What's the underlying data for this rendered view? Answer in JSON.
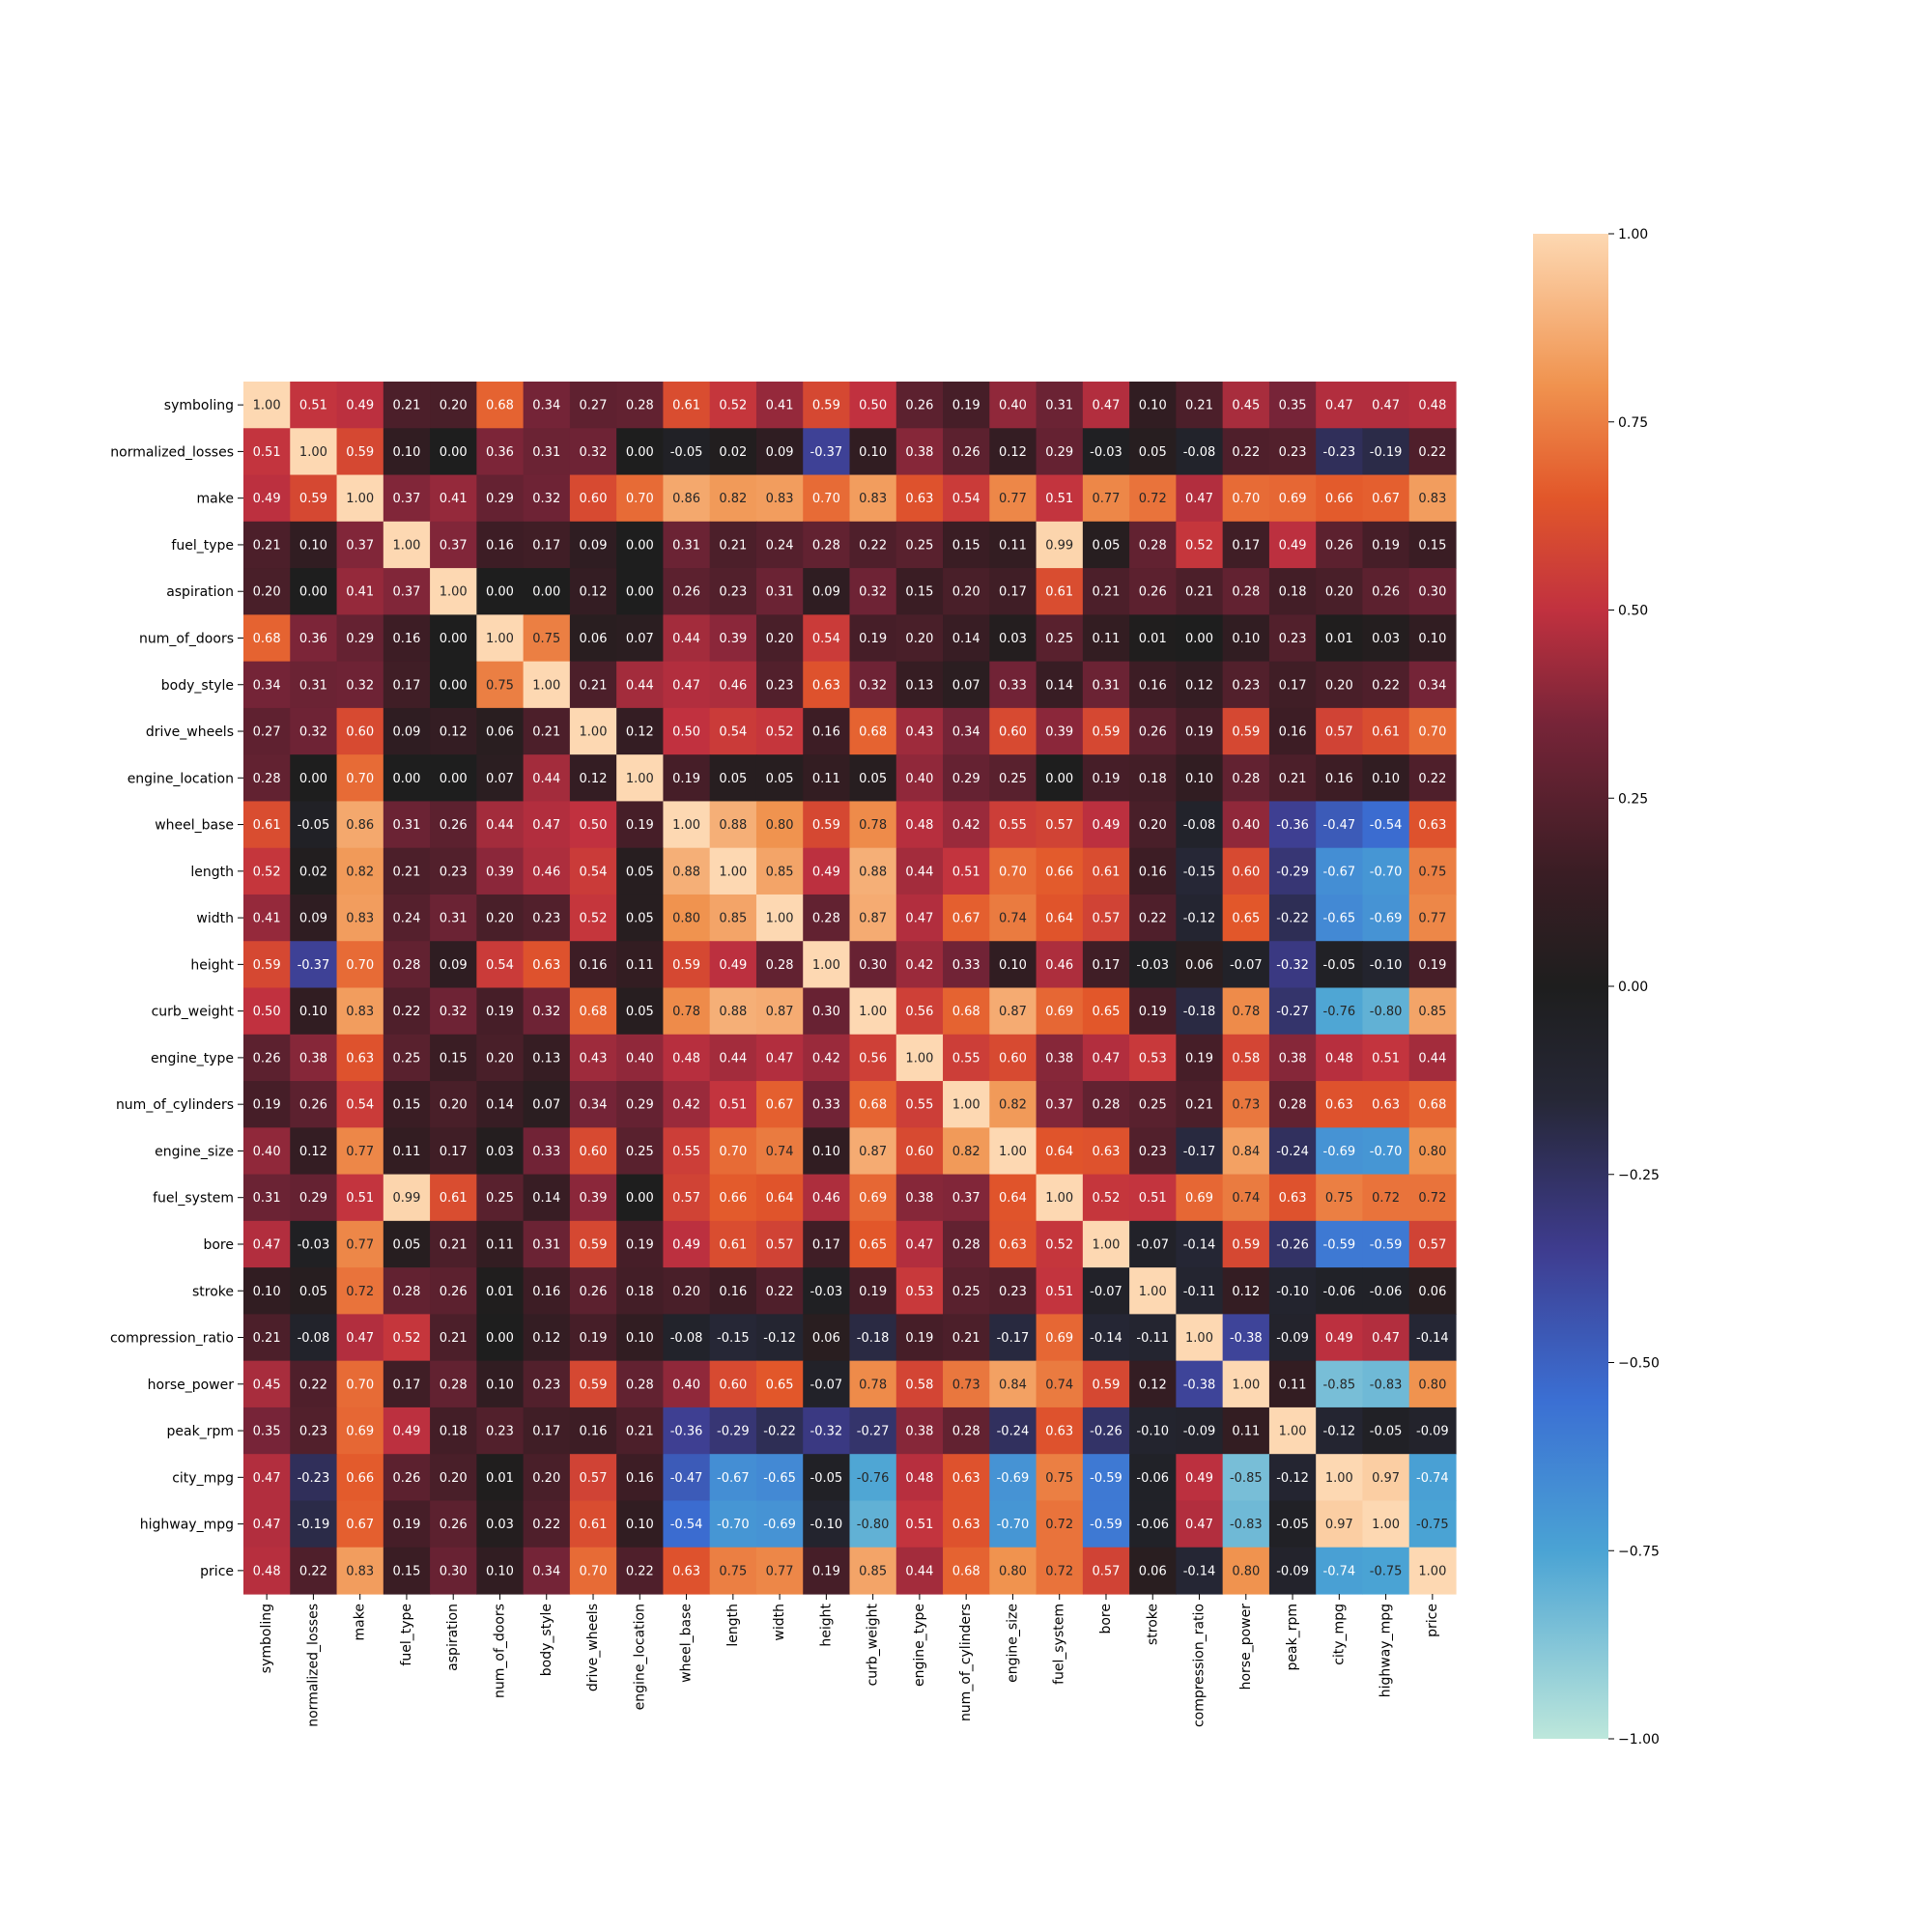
{
  "chart_data": {
    "type": "heatmap",
    "title": "",
    "xlabel": "",
    "ylabel": "",
    "variables": [
      "symboling",
      "normalized_losses",
      "make",
      "fuel_type",
      "aspiration",
      "num_of_doors",
      "body_style",
      "drive_wheels",
      "engine_location",
      "wheel_base",
      "length",
      "width",
      "height",
      "curb_weight",
      "engine_type",
      "num_of_cylinders",
      "engine_size",
      "fuel_system",
      "bore",
      "stroke",
      "compression_ratio",
      "horse_power",
      "peak_rpm",
      "city_mpg",
      "highway_mpg",
      "price"
    ],
    "values": [
      [
        1.0,
        0.51,
        0.49,
        0.21,
        0.2,
        0.68,
        0.34,
        0.27,
        0.28,
        0.61,
        0.52,
        0.41,
        0.59,
        0.5,
        0.26,
        0.19,
        0.4,
        0.31,
        0.47,
        0.1,
        0.21,
        0.45,
        0.35,
        0.47,
        0.47,
        0.48
      ],
      [
        0.51,
        1.0,
        0.59,
        0.1,
        0.0,
        0.36,
        0.31,
        0.32,
        0.0,
        -0.05,
        0.02,
        0.09,
        -0.37,
        0.1,
        0.38,
        0.26,
        0.12,
        0.29,
        -0.03,
        0.05,
        -0.08,
        0.22,
        0.23,
        -0.23,
        -0.19,
        0.22
      ],
      [
        0.49,
        0.59,
        1.0,
        0.37,
        0.41,
        0.29,
        0.32,
        0.6,
        0.7,
        0.86,
        0.82,
        0.83,
        0.7,
        0.83,
        0.63,
        0.54,
        0.77,
        0.51,
        0.77,
        0.72,
        0.47,
        0.7,
        0.69,
        0.66,
        0.67,
        0.83
      ],
      [
        0.21,
        0.1,
        0.37,
        1.0,
        0.37,
        0.16,
        0.17,
        0.09,
        0.0,
        0.31,
        0.21,
        0.24,
        0.28,
        0.22,
        0.25,
        0.15,
        0.11,
        0.99,
        0.05,
        0.28,
        0.52,
        0.17,
        0.49,
        0.26,
        0.19,
        0.15
      ],
      [
        0.2,
        0.0,
        0.41,
        0.37,
        1.0,
        0.0,
        0.0,
        0.12,
        0.0,
        0.26,
        0.23,
        0.31,
        0.09,
        0.32,
        0.15,
        0.2,
        0.17,
        0.61,
        0.21,
        0.26,
        0.21,
        0.28,
        0.18,
        0.2,
        0.26,
        0.3
      ],
      [
        0.68,
        0.36,
        0.29,
        0.16,
        0.0,
        1.0,
        0.75,
        0.06,
        0.07,
        0.44,
        0.39,
        0.2,
        0.54,
        0.19,
        0.2,
        0.14,
        0.03,
        0.25,
        0.11,
        0.01,
        0.0,
        0.1,
        0.23,
        0.01,
        0.03,
        0.1
      ],
      [
        0.34,
        0.31,
        0.32,
        0.17,
        0.0,
        0.75,
        1.0,
        0.21,
        0.44,
        0.47,
        0.46,
        0.23,
        0.63,
        0.32,
        0.13,
        0.07,
        0.33,
        0.14,
        0.31,
        0.16,
        0.12,
        0.23,
        0.17,
        0.2,
        0.22,
        0.34
      ],
      [
        0.27,
        0.32,
        0.6,
        0.09,
        0.12,
        0.06,
        0.21,
        1.0,
        0.12,
        0.5,
        0.54,
        0.52,
        0.16,
        0.68,
        0.43,
        0.34,
        0.6,
        0.39,
        0.59,
        0.26,
        0.19,
        0.59,
        0.16,
        0.57,
        0.61,
        0.7
      ],
      [
        0.28,
        0.0,
        0.7,
        0.0,
        0.0,
        0.07,
        0.44,
        0.12,
        1.0,
        0.19,
        0.05,
        0.05,
        0.11,
        0.05,
        0.4,
        0.29,
        0.25,
        0.0,
        0.19,
        0.18,
        0.1,
        0.28,
        0.21,
        0.16,
        0.1,
        0.22
      ],
      [
        0.61,
        -0.05,
        0.86,
        0.31,
        0.26,
        0.44,
        0.47,
        0.5,
        0.19,
        1.0,
        0.88,
        0.8,
        0.59,
        0.78,
        0.48,
        0.42,
        0.55,
        0.57,
        0.49,
        0.2,
        -0.08,
        0.4,
        -0.36,
        -0.47,
        -0.54,
        0.63
      ],
      [
        0.52,
        0.02,
        0.82,
        0.21,
        0.23,
        0.39,
        0.46,
        0.54,
        0.05,
        0.88,
        1.0,
        0.85,
        0.49,
        0.88,
        0.44,
        0.51,
        0.7,
        0.66,
        0.61,
        0.16,
        -0.15,
        0.6,
        -0.29,
        -0.67,
        -0.7,
        0.75
      ],
      [
        0.41,
        0.09,
        0.83,
        0.24,
        0.31,
        0.2,
        0.23,
        0.52,
        0.05,
        0.8,
        0.85,
        1.0,
        0.28,
        0.87,
        0.47,
        0.67,
        0.74,
        0.64,
        0.57,
        0.22,
        -0.12,
        0.65,
        -0.22,
        -0.65,
        -0.69,
        0.77
      ],
      [
        0.59,
        -0.37,
        0.7,
        0.28,
        0.09,
        0.54,
        0.63,
        0.16,
        0.11,
        0.59,
        0.49,
        0.28,
        1.0,
        0.3,
        0.42,
        0.33,
        0.1,
        0.46,
        0.17,
        -0.03,
        0.06,
        -0.07,
        -0.32,
        -0.05,
        -0.1,
        0.19
      ],
      [
        0.5,
        0.1,
        0.83,
        0.22,
        0.32,
        0.19,
        0.32,
        0.68,
        0.05,
        0.78,
        0.88,
        0.87,
        0.3,
        1.0,
        0.56,
        0.68,
        0.87,
        0.69,
        0.65,
        0.19,
        -0.18,
        0.78,
        -0.27,
        -0.76,
        -0.8,
        0.85
      ],
      [
        0.26,
        0.38,
        0.63,
        0.25,
        0.15,
        0.2,
        0.13,
        0.43,
        0.4,
        0.48,
        0.44,
        0.47,
        0.42,
        0.56,
        1.0,
        0.55,
        0.6,
        0.38,
        0.47,
        0.53,
        0.19,
        0.58,
        0.38,
        0.48,
        0.51,
        0.44
      ],
      [
        0.19,
        0.26,
        0.54,
        0.15,
        0.2,
        0.14,
        0.07,
        0.34,
        0.29,
        0.42,
        0.51,
        0.67,
        0.33,
        0.68,
        0.55,
        1.0,
        0.82,
        0.37,
        0.28,
        0.25,
        0.21,
        0.73,
        0.28,
        0.63,
        0.63,
        0.68
      ],
      [
        0.4,
        0.12,
        0.77,
        0.11,
        0.17,
        0.03,
        0.33,
        0.6,
        0.25,
        0.55,
        0.7,
        0.74,
        0.1,
        0.87,
        0.6,
        0.82,
        1.0,
        0.64,
        0.63,
        0.23,
        -0.17,
        0.84,
        -0.24,
        -0.69,
        -0.7,
        0.8
      ],
      [
        0.31,
        0.29,
        0.51,
        0.99,
        0.61,
        0.25,
        0.14,
        0.39,
        0.0,
        0.57,
        0.66,
        0.64,
        0.46,
        0.69,
        0.38,
        0.37,
        0.64,
        1.0,
        0.52,
        0.51,
        0.69,
        0.74,
        0.63,
        0.75,
        0.72,
        0.72
      ],
      [
        0.47,
        -0.03,
        0.77,
        0.05,
        0.21,
        0.11,
        0.31,
        0.59,
        0.19,
        0.49,
        0.61,
        0.57,
        0.17,
        0.65,
        0.47,
        0.28,
        0.63,
        0.52,
        1.0,
        -0.07,
        -0.14,
        0.59,
        -0.26,
        -0.59,
        -0.59,
        0.57
      ],
      [
        0.1,
        0.05,
        0.72,
        0.28,
        0.26,
        0.01,
        0.16,
        0.26,
        0.18,
        0.2,
        0.16,
        0.22,
        -0.03,
        0.19,
        0.53,
        0.25,
        0.23,
        0.51,
        -0.07,
        1.0,
        -0.11,
        0.12,
        -0.1,
        -0.06,
        -0.06,
        0.06
      ],
      [
        0.21,
        -0.08,
        0.47,
        0.52,
        0.21,
        0.0,
        0.12,
        0.19,
        0.1,
        -0.08,
        -0.15,
        -0.12,
        0.06,
        -0.18,
        0.19,
        0.21,
        -0.17,
        0.69,
        -0.14,
        -0.11,
        1.0,
        -0.38,
        -0.09,
        0.49,
        0.47,
        -0.14
      ],
      [
        0.45,
        0.22,
        0.7,
        0.17,
        0.28,
        0.1,
        0.23,
        0.59,
        0.28,
        0.4,
        0.6,
        0.65,
        -0.07,
        0.78,
        0.58,
        0.73,
        0.84,
        0.74,
        0.59,
        0.12,
        -0.38,
        1.0,
        0.11,
        -0.85,
        -0.83,
        0.8
      ],
      [
        0.35,
        0.23,
        0.69,
        0.49,
        0.18,
        0.23,
        0.17,
        0.16,
        0.21,
        -0.36,
        -0.29,
        -0.22,
        -0.32,
        -0.27,
        0.38,
        0.28,
        -0.24,
        0.63,
        -0.26,
        -0.1,
        -0.09,
        0.11,
        1.0,
        -0.12,
        -0.05,
        -0.09
      ],
      [
        0.47,
        -0.23,
        0.66,
        0.26,
        0.2,
        0.01,
        0.2,
        0.57,
        0.16,
        -0.47,
        -0.67,
        -0.65,
        -0.05,
        -0.76,
        0.48,
        0.63,
        -0.69,
        0.75,
        -0.59,
        -0.06,
        0.49,
        -0.85,
        -0.12,
        1.0,
        0.97,
        -0.74
      ],
      [
        0.47,
        -0.19,
        0.67,
        0.19,
        0.26,
        0.03,
        0.22,
        0.61,
        0.1,
        -0.54,
        -0.7,
        -0.69,
        -0.1,
        -0.8,
        0.51,
        0.63,
        -0.7,
        0.72,
        -0.59,
        -0.06,
        0.47,
        -0.83,
        -0.05,
        0.97,
        1.0,
        -0.75
      ],
      [
        0.48,
        0.22,
        0.83,
        0.15,
        0.3,
        0.1,
        0.34,
        0.7,
        0.22,
        0.63,
        0.75,
        0.77,
        0.19,
        0.85,
        0.44,
        0.68,
        0.8,
        0.72,
        0.57,
        0.06,
        -0.14,
        0.8,
        -0.09,
        -0.74,
        -0.75,
        1.0
      ]
    ],
    "value_format": "2 decimals",
    "colorbar": {
      "vmin": -1.0,
      "vmax": 1.0,
      "ticks": [
        1.0,
        0.75,
        0.5,
        0.25,
        0.0,
        -0.25,
        -0.5,
        -0.75,
        -1.0
      ],
      "tick_labels": [
        "1.00",
        "0.75",
        "0.50",
        "0.25",
        "0.00",
        "−0.25",
        "−0.50",
        "−0.75",
        "−1.00"
      ],
      "colormap": "icefire",
      "stops": [
        {
          "v": -1.0,
          "color": "#bde7db"
        },
        {
          "v": -0.75,
          "color": "#4aa3d4"
        },
        {
          "v": -0.55,
          "color": "#3b6fd3"
        },
        {
          "v": -0.35,
          "color": "#3e3c8f"
        },
        {
          "v": -0.15,
          "color": "#262736"
        },
        {
          "v": 0.0,
          "color": "#1e1e1e"
        },
        {
          "v": 0.15,
          "color": "#3a1d24"
        },
        {
          "v": 0.35,
          "color": "#772438"
        },
        {
          "v": 0.5,
          "color": "#c1313f"
        },
        {
          "v": 0.65,
          "color": "#e2572a"
        },
        {
          "v": 0.8,
          "color": "#f0934f"
        },
        {
          "v": 1.0,
          "color": "#fdd8b2"
        }
      ],
      "position": "right"
    },
    "grid": false,
    "legend": "colorbar-right"
  }
}
